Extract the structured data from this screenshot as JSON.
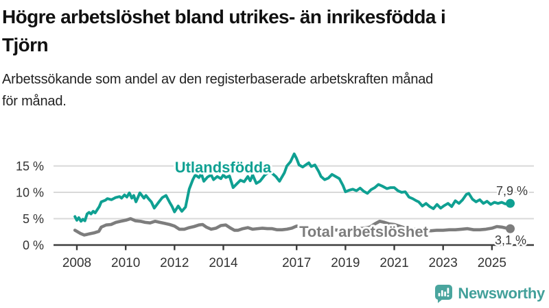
{
  "header": {
    "title_lines": [
      "Högre arbetslöshet bland utrikes- än inrikesfödda i",
      "Tjörn"
    ],
    "subtitle_lines": [
      "Arbetssökande som andel av den registerbaserade arbetskraften månad",
      "för månad."
    ]
  },
  "footer": {
    "brand": "Newsworthy",
    "logo_icon": "bar-chart-speech-bubble"
  },
  "colors": {
    "foreign_born_line": "#0fa092",
    "total_line": "#7d7d7d",
    "grid": "#d8d8d8",
    "axis": "#3c3c3c",
    "tick_label": "#333333",
    "value_label": "#3a3a3a",
    "brand_teal": "#42a09a"
  },
  "chart_data": {
    "type": "line",
    "title": "Högre arbetslöshet bland utrikes- än inrikesfödda i Tjörn",
    "subtitle": "Arbetssökande som andel av den registerbaserade arbetskraften månad för månad.",
    "xlabel": "",
    "ylabel": "",
    "grid": true,
    "x_axis": {
      "range": [
        2007.85,
        2025.9
      ],
      "ticks": [
        2008,
        2010,
        2012,
        2014,
        2017,
        2019,
        2021,
        2023,
        2025
      ],
      "tick_labels": [
        "2008",
        "2010",
        "2012",
        "2014",
        "2017",
        "2019",
        "2021",
        "2023",
        "2025"
      ]
    },
    "y_axis": {
      "range": [
        0,
        18.5
      ],
      "ticks": [
        0,
        5,
        10,
        15
      ],
      "tick_labels": [
        "0 %",
        "5 %",
        "10 %",
        "15 %"
      ]
    },
    "series": [
      {
        "name": "Utlandsfödda",
        "color": "#0fa092",
        "end_label": "7,9 %",
        "end_value": 7.9,
        "points": [
          [
            2007.92,
            5.4
          ],
          [
            2008.0,
            4.7
          ],
          [
            2008.08,
            5.2
          ],
          [
            2008.17,
            4.5
          ],
          [
            2008.25,
            4.9
          ],
          [
            2008.33,
            4.6
          ],
          [
            2008.42,
            5.9
          ],
          [
            2008.5,
            6.2
          ],
          [
            2008.58,
            5.9
          ],
          [
            2008.67,
            6.4
          ],
          [
            2008.75,
            6.1
          ],
          [
            2008.92,
            7.3
          ],
          [
            2009.0,
            8.2
          ],
          [
            2009.17,
            8.5
          ],
          [
            2009.25,
            8.8
          ],
          [
            2009.42,
            8.6
          ],
          [
            2009.58,
            9.0
          ],
          [
            2009.75,
            9.2
          ],
          [
            2009.83,
            8.9
          ],
          [
            2009.95,
            9.5
          ],
          [
            2010.05,
            9.1
          ],
          [
            2010.15,
            9.9
          ],
          [
            2010.25,
            8.9
          ],
          [
            2010.33,
            9.4
          ],
          [
            2010.42,
            8.2
          ],
          [
            2010.5,
            9.0
          ],
          [
            2010.58,
            9.9
          ],
          [
            2010.75,
            8.9
          ],
          [
            2010.83,
            9.4
          ],
          [
            2010.95,
            8.7
          ],
          [
            2011.05,
            8.2
          ],
          [
            2011.17,
            7.0
          ],
          [
            2011.33,
            8.0
          ],
          [
            2011.5,
            9.0
          ],
          [
            2011.65,
            9.4
          ],
          [
            2011.8,
            8.1
          ],
          [
            2011.9,
            7.3
          ],
          [
            2012.0,
            6.3
          ],
          [
            2012.15,
            7.4
          ],
          [
            2012.3,
            6.4
          ],
          [
            2012.45,
            7.2
          ],
          [
            2012.6,
            10.6
          ],
          [
            2012.75,
            12.4
          ],
          [
            2012.85,
            13.3
          ],
          [
            2013.0,
            12.8
          ],
          [
            2013.1,
            13.5
          ],
          [
            2013.2,
            12.1
          ],
          [
            2013.35,
            12.9
          ],
          [
            2013.5,
            13.3
          ],
          [
            2013.6,
            12.4
          ],
          [
            2013.75,
            13.0
          ],
          [
            2013.9,
            12.6
          ],
          [
            2014.0,
            13.3
          ],
          [
            2014.1,
            12.8
          ],
          [
            2014.25,
            13.1
          ],
          [
            2014.4,
            10.9
          ],
          [
            2014.55,
            11.6
          ],
          [
            2014.7,
            12.3
          ],
          [
            2014.85,
            12.0
          ],
          [
            2015.0,
            13.0
          ],
          [
            2015.1,
            12.2
          ],
          [
            2015.2,
            13.3
          ],
          [
            2015.35,
            11.7
          ],
          [
            2015.5,
            12.1
          ],
          [
            2015.7,
            13.3
          ],
          [
            2015.85,
            13.8
          ],
          [
            2016.0,
            13.6
          ],
          [
            2016.15,
            13.0
          ],
          [
            2016.3,
            12.1
          ],
          [
            2016.5,
            13.7
          ],
          [
            2016.6,
            15.0
          ],
          [
            2016.75,
            15.8
          ],
          [
            2016.9,
            17.3
          ],
          [
            2017.0,
            16.4
          ],
          [
            2017.1,
            15.2
          ],
          [
            2017.25,
            14.8
          ],
          [
            2017.4,
            15.3
          ],
          [
            2017.5,
            15.6
          ],
          [
            2017.6,
            14.9
          ],
          [
            2017.75,
            15.2
          ],
          [
            2017.9,
            14.0
          ],
          [
            2018.0,
            13.0
          ],
          [
            2018.15,
            12.4
          ],
          [
            2018.3,
            12.7
          ],
          [
            2018.45,
            13.4
          ],
          [
            2018.6,
            13.0
          ],
          [
            2018.75,
            12.6
          ],
          [
            2018.9,
            11.3
          ],
          [
            2019.0,
            10.1
          ],
          [
            2019.15,
            10.4
          ],
          [
            2019.3,
            10.6
          ],
          [
            2019.45,
            10.3
          ],
          [
            2019.6,
            10.8
          ],
          [
            2019.75,
            10.2
          ],
          [
            2019.9,
            9.8
          ],
          [
            2020.05,
            10.5
          ],
          [
            2020.2,
            10.9
          ],
          [
            2020.35,
            11.5
          ],
          [
            2020.5,
            11.2
          ],
          [
            2020.7,
            10.7
          ],
          [
            2020.85,
            10.9
          ],
          [
            2021.0,
            10.9
          ],
          [
            2021.15,
            10.3
          ],
          [
            2021.3,
            10.0
          ],
          [
            2021.45,
            10.1
          ],
          [
            2021.6,
            9.1
          ],
          [
            2021.75,
            8.8
          ],
          [
            2021.9,
            8.4
          ],
          [
            2022.0,
            8.2
          ],
          [
            2022.15,
            7.4
          ],
          [
            2022.3,
            7.9
          ],
          [
            2022.45,
            7.3
          ],
          [
            2022.6,
            6.9
          ],
          [
            2022.75,
            7.7
          ],
          [
            2022.9,
            7.0
          ],
          [
            2023.05,
            7.5
          ],
          [
            2023.2,
            7.9
          ],
          [
            2023.35,
            7.3
          ],
          [
            2023.5,
            8.4
          ],
          [
            2023.65,
            7.9
          ],
          [
            2023.8,
            8.6
          ],
          [
            2023.95,
            9.6
          ],
          [
            2024.05,
            9.8
          ],
          [
            2024.2,
            8.7
          ],
          [
            2024.35,
            8.2
          ],
          [
            2024.5,
            8.6
          ],
          [
            2024.65,
            7.9
          ],
          [
            2024.8,
            8.3
          ],
          [
            2024.95,
            7.7
          ],
          [
            2025.1,
            8.1
          ],
          [
            2025.25,
            7.9
          ],
          [
            2025.4,
            8.1
          ],
          [
            2025.55,
            7.8
          ],
          [
            2025.75,
            7.9
          ]
        ]
      },
      {
        "name": "Total arbetslöshet",
        "color": "#7d7d7d",
        "end_label": "3,1 %",
        "end_value": 3.1,
        "points": [
          [
            2007.92,
            2.8
          ],
          [
            2008.15,
            2.2
          ],
          [
            2008.3,
            1.9
          ],
          [
            2008.5,
            2.1
          ],
          [
            2008.7,
            2.3
          ],
          [
            2008.9,
            2.6
          ],
          [
            2009.0,
            3.4
          ],
          [
            2009.2,
            3.8
          ],
          [
            2009.4,
            3.9
          ],
          [
            2009.6,
            4.3
          ],
          [
            2009.8,
            4.5
          ],
          [
            2010.0,
            4.7
          ],
          [
            2010.2,
            5.0
          ],
          [
            2010.4,
            4.6
          ],
          [
            2010.6,
            4.5
          ],
          [
            2010.8,
            4.3
          ],
          [
            2011.0,
            4.2
          ],
          [
            2011.2,
            4.5
          ],
          [
            2011.4,
            4.3
          ],
          [
            2011.6,
            4.1
          ],
          [
            2011.8,
            3.9
          ],
          [
            2012.0,
            3.6
          ],
          [
            2012.2,
            3.0
          ],
          [
            2012.4,
            3.0
          ],
          [
            2012.6,
            3.3
          ],
          [
            2012.8,
            3.5
          ],
          [
            2013.0,
            3.8
          ],
          [
            2013.15,
            3.9
          ],
          [
            2013.3,
            3.4
          ],
          [
            2013.5,
            3.0
          ],
          [
            2013.7,
            3.2
          ],
          [
            2013.9,
            3.7
          ],
          [
            2014.1,
            3.8
          ],
          [
            2014.3,
            3.2
          ],
          [
            2014.45,
            2.8
          ],
          [
            2014.6,
            2.8
          ],
          [
            2014.8,
            3.1
          ],
          [
            2015.0,
            3.3
          ],
          [
            2015.2,
            3.0
          ],
          [
            2015.4,
            3.1
          ],
          [
            2015.6,
            3.2
          ],
          [
            2015.8,
            3.1
          ],
          [
            2016.0,
            3.1
          ],
          [
            2016.2,
            2.9
          ],
          [
            2016.4,
            2.9
          ],
          [
            2016.6,
            3.0
          ],
          [
            2016.8,
            3.2
          ],
          [
            2017.0,
            3.6
          ],
          [
            2017.2,
            3.3
          ],
          [
            2017.4,
            3.2
          ],
          [
            2017.6,
            3.1
          ],
          [
            2017.8,
            3.0
          ],
          [
            2018.0,
            2.9
          ],
          [
            2018.25,
            2.8
          ],
          [
            2018.5,
            2.9
          ],
          [
            2018.75,
            2.8
          ],
          [
            2019.0,
            2.9
          ],
          [
            2019.25,
            3.0
          ],
          [
            2019.5,
            3.1
          ],
          [
            2019.75,
            3.2
          ],
          [
            2020.0,
            3.4
          ],
          [
            2020.2,
            4.0
          ],
          [
            2020.4,
            4.5
          ],
          [
            2020.6,
            4.3
          ],
          [
            2020.8,
            4.0
          ],
          [
            2021.0,
            3.9
          ],
          [
            2021.2,
            3.6
          ],
          [
            2021.4,
            3.3
          ],
          [
            2021.6,
            3.1
          ],
          [
            2021.8,
            3.0
          ],
          [
            2022.0,
            2.9
          ],
          [
            2022.25,
            2.8
          ],
          [
            2022.5,
            2.7
          ],
          [
            2022.75,
            2.8
          ],
          [
            2023.0,
            2.8
          ],
          [
            2023.25,
            2.9
          ],
          [
            2023.5,
            2.9
          ],
          [
            2023.75,
            3.0
          ],
          [
            2024.0,
            3.1
          ],
          [
            2024.25,
            2.9
          ],
          [
            2024.5,
            2.9
          ],
          [
            2024.75,
            3.0
          ],
          [
            2025.0,
            3.2
          ],
          [
            2025.2,
            3.5
          ],
          [
            2025.4,
            3.4
          ],
          [
            2025.6,
            3.2
          ],
          [
            2025.75,
            3.1
          ]
        ]
      }
    ],
    "legend_position": "inline-labels"
  }
}
